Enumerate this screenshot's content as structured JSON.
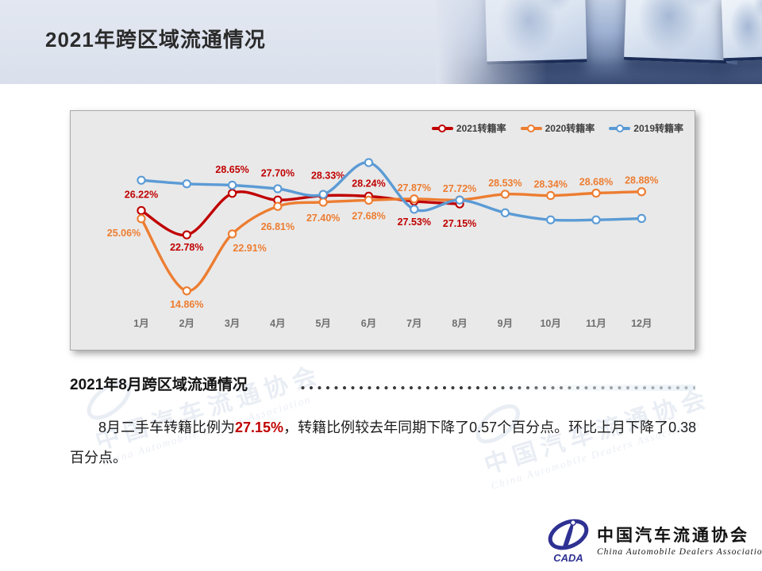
{
  "slide": {
    "title": "2021年跨区域流通情况",
    "section_heading": "2021年8月跨区域流通情况",
    "paragraph": {
      "pre": "8月二手车转籍比例为",
      "highlight": "27.15%",
      "post": "，转籍比例较去年同期下降了0.57个百分点。环比上月下降了0.38百分点。"
    },
    "watermark": {
      "cn": "中国汽车流通协会",
      "en": "China Automobile Dealers Association"
    }
  },
  "logo": {
    "cada": "CADA",
    "cn": "中国汽车流通协会",
    "en": "China Automobile Dealers Association"
  },
  "chart_data": {
    "type": "line",
    "title": "",
    "xlabel": "",
    "ylabel": "",
    "value_suffix": "%",
    "grid": false,
    "legend_position": "top-right",
    "ylim": [
      14.5,
      33.0
    ],
    "categories": [
      "1月",
      "2月",
      "3月",
      "4月",
      "5月",
      "6月",
      "7月",
      "8月",
      "9月",
      "10月",
      "11月",
      "12月"
    ],
    "series": [
      {
        "key": "2021",
        "name": "2021转籍率",
        "color": "#c00000",
        "values": [
          26.22,
          22.78,
          28.65,
          27.7,
          28.33,
          28.24,
          27.53,
          27.15,
          null,
          null,
          null,
          null
        ],
        "labels": [
          "26.22%",
          "22.78%",
          "28.65%",
          "27.70%",
          "28.33%",
          "28.24%",
          "27.53%",
          "27.15%",
          null,
          null,
          null,
          null
        ],
        "label_dy": [
          -16,
          20,
          -26,
          -30,
          -21,
          -12,
          30,
          29,
          0,
          0,
          0,
          0
        ],
        "label_dx": [
          0,
          0,
          0,
          0,
          6,
          0,
          0,
          0,
          0,
          0,
          0,
          0
        ]
      },
      {
        "key": "2020",
        "name": "2020转籍率",
        "color": "#ed7d31",
        "values": [
          25.06,
          14.86,
          22.91,
          26.81,
          27.4,
          27.68,
          27.87,
          27.72,
          28.53,
          28.34,
          28.68,
          28.88
        ],
        "labels": [
          "25.06%",
          "14.86%",
          "22.91%",
          "26.81%",
          "27.40%",
          "27.68%",
          "27.87%",
          "27.72%",
          "28.53%",
          "28.34%",
          "28.68%",
          "28.88%"
        ],
        "label_dy": [
          22,
          21,
          22,
          30,
          24,
          24,
          -10,
          -10,
          -10,
          -10,
          -10,
          -10
        ],
        "label_dx": [
          -22,
          0,
          22,
          0,
          0,
          0,
          0,
          0,
          0,
          0,
          0,
          0
        ]
      },
      {
        "key": "2019",
        "name": "2019转籍率",
        "color": "#5b9bd5",
        "values_estimated": true,
        "values": [
          30.5,
          30.0,
          29.8,
          29.3,
          28.5,
          33.0,
          26.4,
          27.7,
          25.9,
          24.9,
          24.9,
          25.1
        ],
        "labels": null
      }
    ]
  }
}
